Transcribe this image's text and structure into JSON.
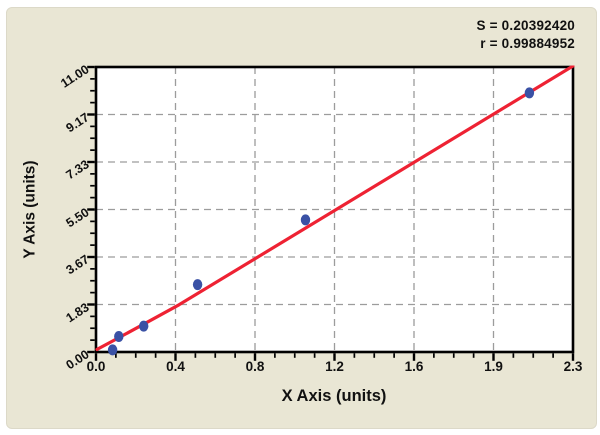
{
  "chart_data": {
    "type": "scatter",
    "title": "",
    "xlabel": "X Axis (units)",
    "ylabel": "Y Axis (units)",
    "xlim": [
      0,
      2.3
    ],
    "ylim": [
      0,
      11.0
    ],
    "x_tick_labels": [
      "0.0",
      "0.4",
      "0.8",
      "1.2",
      "1.6",
      "1.9",
      "2.3"
    ],
    "y_tick_labels": [
      "0.00",
      "1.83",
      "3.67",
      "5.50",
      "7.33",
      "9.17",
      "11.00"
    ],
    "minor_ticks_per_interval": 3,
    "grid": "dashed",
    "legend": "none",
    "points": [
      [
        0.08,
        0.08
      ],
      [
        0.11,
        0.6
      ],
      [
        0.23,
        1.0
      ],
      [
        0.49,
        2.6
      ],
      [
        1.01,
        5.1
      ],
      [
        2.09,
        10.0
      ]
    ],
    "fit_line": {
      "start": [
        0.005,
        0.1
      ],
      "control": [
        0.09,
        0.46
      ],
      "bend": [
        0.4,
        1.82
      ],
      "end": [
        2.3,
        11.04
      ]
    },
    "annotations": [
      "S = 0.20392420",
      "r = 0.99884952"
    ],
    "colors": {
      "point": "#3a51a5",
      "line": "#ee2233",
      "grid": "#9c9c9c",
      "axis": "#000000",
      "panel_bg": "#e9e6d4",
      "plot_bg": "#ffffff",
      "text": "#111111"
    }
  }
}
